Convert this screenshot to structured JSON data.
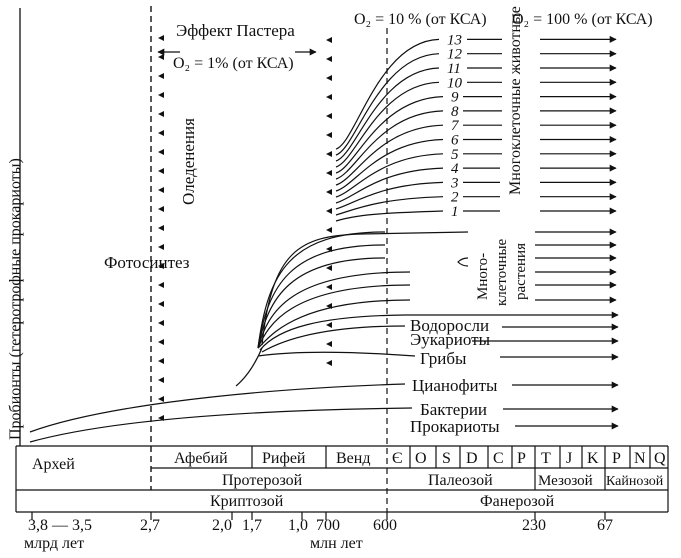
{
  "y_axis_label": "Пробионты (гетеротрофные прокариоты)",
  "labels": {
    "pasteur_title": "Эффект Пастера",
    "pasteur_o2": "O₂ = 1% (от КСА)",
    "glaciation": "Оледенения",
    "photosynthesis": "Фотосинтез",
    "o2_10": "O₂ = 10 % (от КСА)",
    "o2_100": "O₂ = 100 % (от КСА)",
    "animals": "Многоклеточные животные",
    "plants": "Многоклеточные растения",
    "algae": "Водоросли",
    "eukaryotes": "Эукариоты",
    "fungi": "Грибы",
    "cyanophytes": "Цианофиты",
    "bacteria": "Бактерии",
    "prokaryotes": "Прокариоты"
  },
  "animal_lines": [
    "1",
    "2",
    "3",
    "4",
    "5",
    "6",
    "7",
    "8",
    "9",
    "10",
    "11",
    "12",
    "13"
  ],
  "timeline": {
    "eons": [
      "Криптозой",
      "Фанерозой"
    ],
    "eras": [
      "Протерозой",
      "Палеозой",
      "Мезозой",
      "Кайнозой"
    ],
    "archean": "Архей",
    "precambrian_periods": [
      "Афебий",
      "Рифей",
      "Венд"
    ],
    "paleozoic_periods": [
      "Є",
      "O",
      "S",
      "D",
      "C",
      "P"
    ],
    "mesozoic_periods": [
      "T",
      "J",
      "K"
    ],
    "cenozoic_periods": [
      "P",
      "N",
      "Q"
    ],
    "ticks": {
      "t1": "3,8 — 3,5",
      "t2": "2,7",
      "t3": "2,0",
      "t4": "1,7",
      "t5": "1,0",
      "t6": "700",
      "t7": "600",
      "t8": "230",
      "t9": "67"
    },
    "unit_billion": "млрд лет",
    "unit_million": "млн лет"
  }
}
